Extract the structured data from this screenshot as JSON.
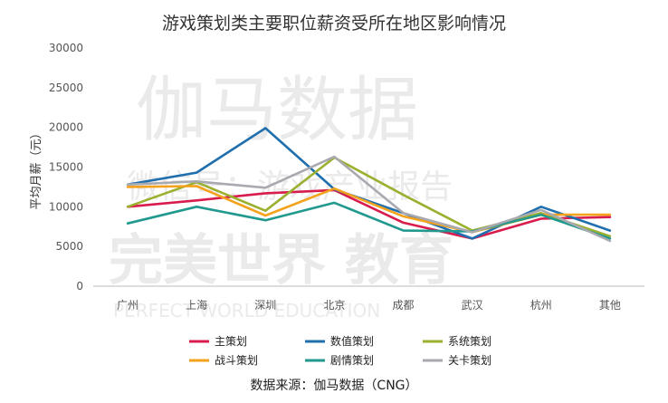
{
  "chart_data": {
    "type": "line",
    "title": "游戏策划类主要职位薪资受所在地区影响情况",
    "xlabel": "",
    "ylabel": "平均月薪（元）",
    "ylim": [
      0,
      30000
    ],
    "yticks": [
      0,
      5000,
      10000,
      15000,
      20000,
      25000,
      30000
    ],
    "grid": false,
    "legend_position": "bottom",
    "categories": [
      "广州",
      "上海",
      "深圳",
      "北京",
      "成都",
      "武汉",
      "杭州",
      "其他"
    ],
    "series": [
      {
        "name": "主策划",
        "color": "#d81c4d",
        "values": [
          10000,
          10800,
          11700,
          12100,
          8000,
          6000,
          8500,
          8700
        ]
      },
      {
        "name": "数值策划",
        "color": "#1f6fae",
        "values": [
          12800,
          14300,
          19900,
          12200,
          9200,
          6000,
          10000,
          7000
        ]
      },
      {
        "name": "系统策划",
        "color": "#9bb02f",
        "values": [
          10000,
          13100,
          9500,
          16200,
          11500,
          7000,
          9200,
          6300
        ]
      },
      {
        "name": "战斗策划",
        "color": "#f4a21c",
        "values": [
          12500,
          12600,
          8900,
          12300,
          8800,
          6800,
          9000,
          9000
        ]
      },
      {
        "name": "剧情策划",
        "color": "#21998e",
        "values": [
          7900,
          10000,
          8300,
          10500,
          7000,
          6900,
          9000,
          6000
        ]
      },
      {
        "name": "关卡策划",
        "color": "#a9a9b0",
        "values": [
          12800,
          13200,
          12400,
          16300,
          9200,
          6800,
          9600,
          5700
        ]
      }
    ]
  },
  "footer": {
    "source": "数据来源：伽马数据（CNG）"
  },
  "watermark": {
    "line1": "伽马数据",
    "line2": "微信号：游戏产业报告",
    "line3": "完美世界  教育",
    "line4": "PERFECT WORLD  EDUCATION"
  }
}
